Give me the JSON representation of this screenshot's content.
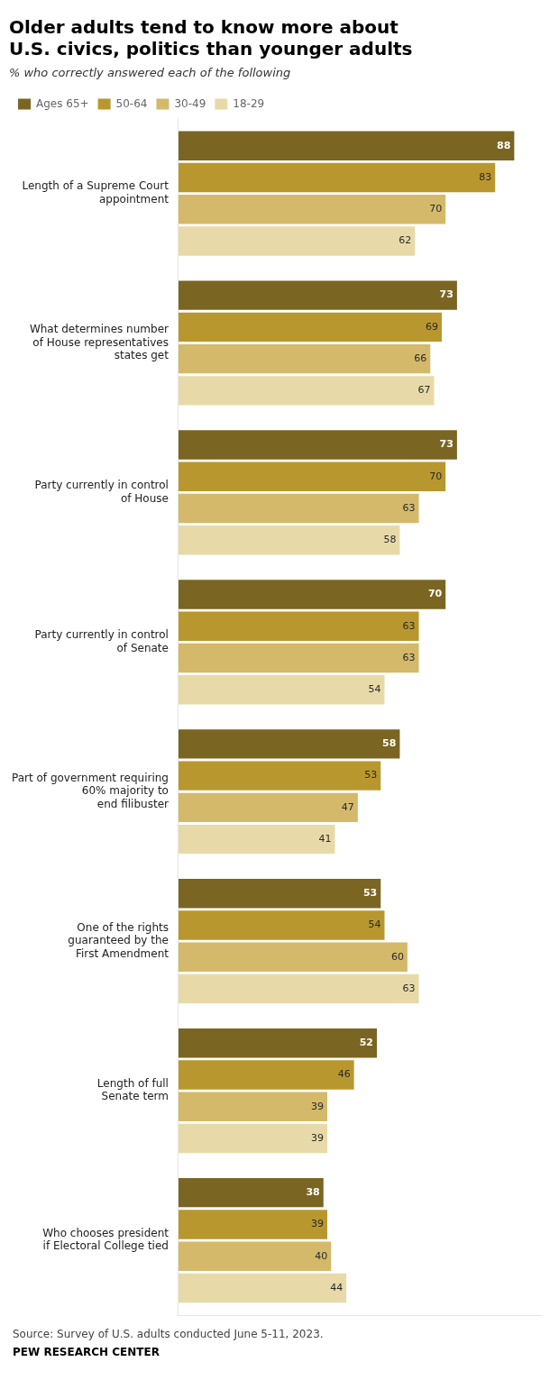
{
  "chart_data": {
    "type": "bar",
    "orientation": "horizontal",
    "title": "Older adults tend to know more about\nU.S. civics, politics than younger adults",
    "subtitle": "% who correctly answered each of the following",
    "annotations": [
      "Source: Survey of U.S. adults conducted June 5-11, 2023.",
      "PEW RESEARCH CENTER"
    ],
    "categories": [
      "Length of a Supreme Court\nappointment",
      "What determines number\nof House representatives\nstates get",
      "Party currently in control\nof House",
      "Party currently in control\nof Senate",
      "Part of government requiring\n60% majority to\nend filibuster",
      "One of the rights\nguaranteed by the\nFirst Amendment",
      "Length of full\nSenate term",
      "Who chooses president\nif Electoral College tied"
    ],
    "series": [
      {
        "name": "Ages 65+",
        "color": "#7a6523",
        "values": [
          88,
          73,
          73,
          70,
          58,
          53,
          52,
          38
        ]
      },
      {
        "name": "50-64",
        "color": "#b8972e",
        "values": [
          83,
          69,
          70,
          63,
          53,
          54,
          46,
          39
        ]
      },
      {
        "name": "30-49",
        "color": "#d4b96a",
        "values": [
          70,
          66,
          63,
          63,
          47,
          60,
          39,
          40
        ]
      },
      {
        "name": "18-29",
        "color": "#e8daa8",
        "values": [
          62,
          67,
          58,
          54,
          41,
          63,
          39,
          44
        ]
      }
    ],
    "xlim": [
      0,
      95
    ],
    "grid": false,
    "legend": "top",
    "data_labels": true,
    "tick_labels": "y"
  }
}
